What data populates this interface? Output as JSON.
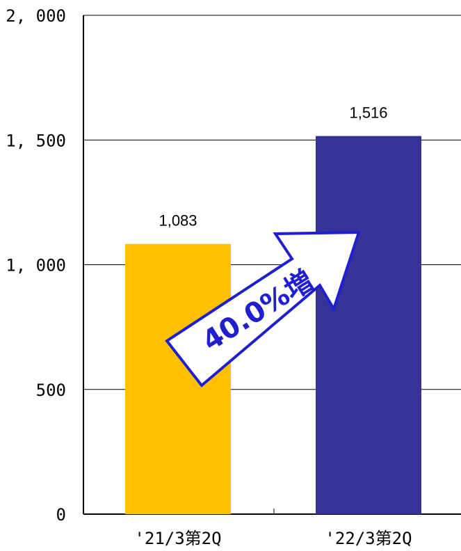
{
  "chart_data": {
    "type": "bar",
    "categories": [
      "'21/3第2Q",
      "'22/3第2Q"
    ],
    "values": [
      1083,
      1516
    ],
    "data_labels": [
      "1,083",
      "1,516"
    ],
    "yticks": [
      {
        "value": 0,
        "label": "0"
      },
      {
        "value": 500,
        "label": "500"
      },
      {
        "value": 1000,
        "label": "1, 000"
      },
      {
        "value": 1500,
        "label": "1, 500"
      },
      {
        "value": 2000,
        "label": "2, 000"
      }
    ],
    "ylim": [
      0,
      2000
    ],
    "grid": true,
    "colors": [
      "#ffc000",
      "#333399"
    ],
    "annotation": {
      "text": "40.0%増",
      "color": "#1f1fd0",
      "arrow_fill": "#ffffff"
    }
  }
}
